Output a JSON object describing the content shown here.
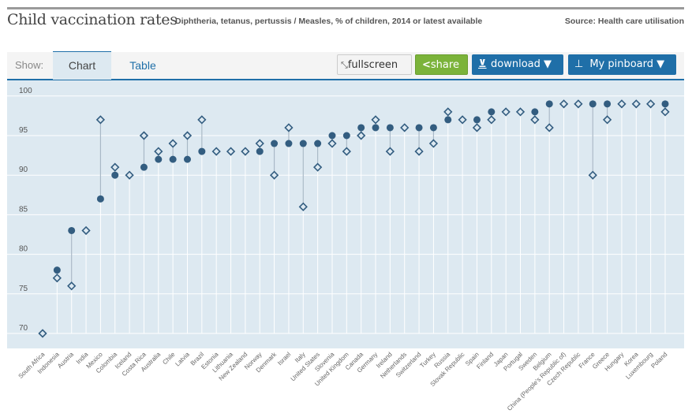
{
  "header": {
    "title": "Child vaccination rates",
    "subtitle": "Diphtheria, tetanus, pertussis / Measles, % of children, 2014 or latest available",
    "source": "Source: Health care utilisation"
  },
  "toolbar": {
    "show_label": "Show:",
    "tabs": [
      {
        "label": "Chart",
        "active": true
      },
      {
        "label": "Table",
        "active": false
      }
    ],
    "fullscreen_label": "fullscreen",
    "share_label": "share",
    "download_label": "download ▼",
    "pinboard_label": "My pinboard ▼",
    "icons": {
      "fullscreen": "expand-arrows-icon",
      "share": "share-icon",
      "download": "download-icon",
      "pinboard": "pin-icon"
    }
  },
  "colors": {
    "accent": "#1f6fa8",
    "share_green": "#7bb33a",
    "marker": "#335d80",
    "plot_bg": "#dde9f1",
    "connector": "#a8b8c6"
  },
  "chart_data": {
    "type": "scatter",
    "title": "Child vaccination rates",
    "subtitle": "Diphtheria, tetanus, pertussis / Measles, % of children, 2014 or latest available",
    "xlabel": "",
    "ylabel": "",
    "ylim": [
      68,
      101.5
    ],
    "yticks": [
      70,
      75,
      80,
      85,
      90,
      95,
      100
    ],
    "grid": true,
    "legend": "none",
    "categories": [
      "South Africa",
      "Indonesia",
      "Austria",
      "India",
      "Mexico",
      "Colombia",
      "Iceland",
      "Costa Rica",
      "Australia",
      "Chile",
      "Latvia",
      "Brazil",
      "Estonia",
      "Lithuania",
      "New Zealand",
      "Norway",
      "Denmark",
      "Israel",
      "Italy",
      "United States",
      "Slovenia",
      "United Kingdom",
      "Canada",
      "Germany",
      "Ireland",
      "Netherlands",
      "Switzerland",
      "Turkey",
      "Russia",
      "Slovak Republic",
      "Spain",
      "Finland",
      "Japan",
      "Portugal",
      "Sweden",
      "Belgium",
      "China (People's Republic of)",
      "Czech Republic",
      "France",
      "Greece",
      "Hungary",
      "Korea",
      "Luxembourg",
      "Poland"
    ],
    "series": [
      {
        "name": "Diphtheria, tetanus, pertussis",
        "marker": "circle",
        "values": [
          null,
          78,
          83,
          83,
          87,
          90,
          90,
          91,
          92,
          92,
          92,
          93,
          93,
          93,
          93,
          93,
          94,
          94,
          94,
          94,
          95,
          95,
          96,
          96,
          96,
          96,
          96,
          96,
          97,
          97,
          97,
          98,
          98,
          98,
          98,
          99,
          99,
          99,
          99,
          99,
          99,
          99,
          99,
          99
        ]
      },
      {
        "name": "Measles",
        "marker": "diamond",
        "values": [
          70,
          77,
          76,
          83,
          97,
          91,
          90,
          95,
          93,
          94,
          95,
          97,
          93,
          93,
          93,
          94,
          90,
          96,
          86,
          91,
          94,
          93,
          95,
          97,
          93,
          96,
          93,
          94,
          98,
          97,
          96,
          97,
          98,
          98,
          97,
          96,
          99,
          99,
          90,
          97,
          99,
          99,
          99,
          98
        ]
      }
    ]
  }
}
